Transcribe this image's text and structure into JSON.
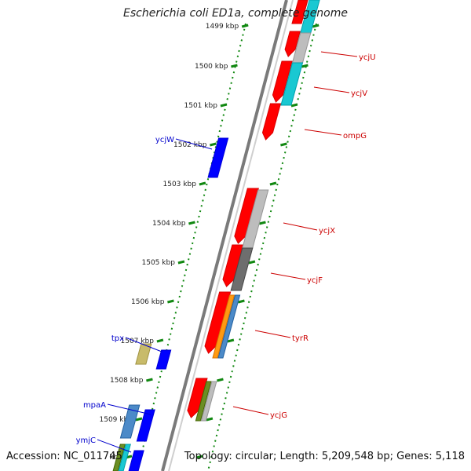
{
  "title": "Escherichia coli ED1a, complete genome",
  "footer": {
    "accession": "Accession: NC_011745",
    "info": "Topology: circular; Length: 5,209,548 bp; Genes: 5,118"
  },
  "colors": {
    "forward_cds": "#ff0000",
    "reverse_cds": "#0000ff",
    "forward_label": "#cc0000",
    "reverse_label": "#0000cc",
    "backbone": "#7a7a7a",
    "tick": "#118811",
    "cyan": "#19c8d2",
    "light_gray": "#bdbdbd",
    "dark_gray": "#6e6e6e",
    "orange": "#ff9a12",
    "steel_blue": "#4c8ac8",
    "olive_green": "#6b8e23",
    "khaki": "#c8bb6a"
  },
  "ruler": {
    "unit": "kbp",
    "ticks": [
      "1499 kbp",
      "1500 kbp",
      "1501 kbp",
      "1502 kbp",
      "1503 kbp",
      "1504 kbp",
      "1505 kbp",
      "1506 kbp",
      "1507 kbp",
      "1508 kbp",
      "1509 kbp",
      "kbp"
    ]
  },
  "genes": [
    {
      "name": "ycjU",
      "strand": "forward"
    },
    {
      "name": "ycjV",
      "strand": "forward"
    },
    {
      "name": "ompG",
      "strand": "forward"
    },
    {
      "name": "ycjW",
      "strand": "reverse"
    },
    {
      "name": "ycjX",
      "strand": "forward"
    },
    {
      "name": "ycjF",
      "strand": "forward"
    },
    {
      "name": "tyrR",
      "strand": "forward"
    },
    {
      "name": "tpx",
      "strand": "reverse"
    },
    {
      "name": "ycjG",
      "strand": "forward"
    },
    {
      "name": "mpaA",
      "strand": "reverse"
    },
    {
      "name": "ymjC",
      "strand": "reverse"
    }
  ]
}
